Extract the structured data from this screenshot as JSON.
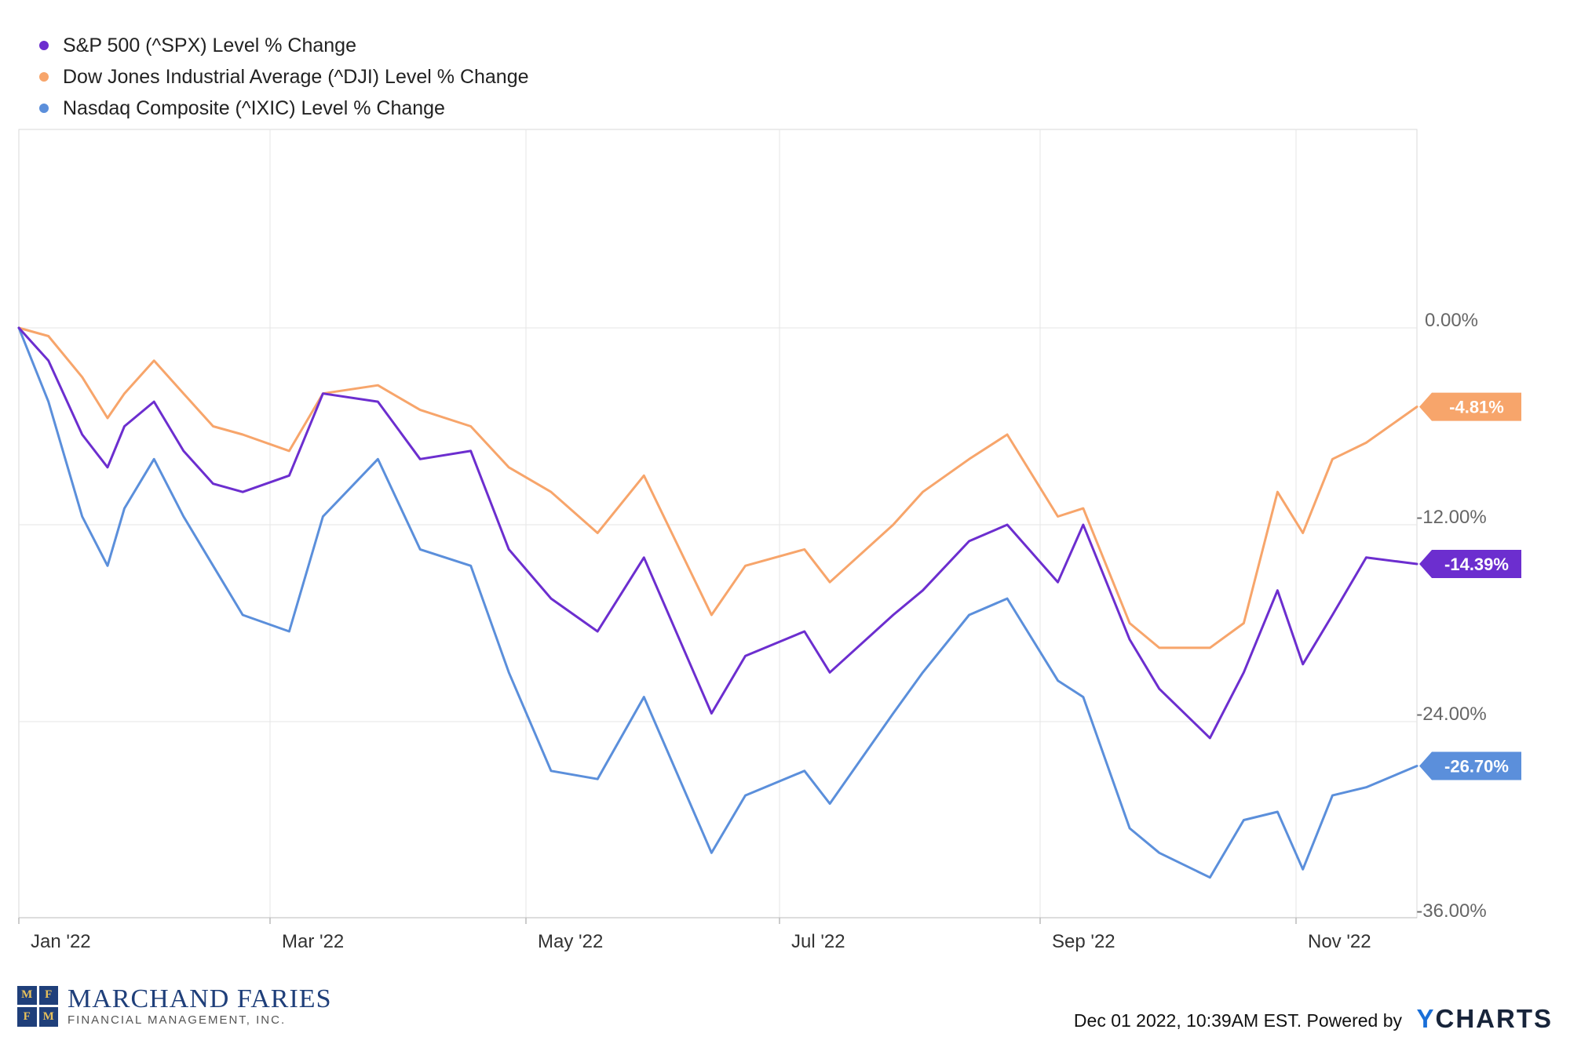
{
  "chart_data": {
    "type": "line",
    "x_ticks": [
      "Jan '22",
      "Mar '22",
      "May '22",
      "Jul '22",
      "Sep '22",
      "Nov '22"
    ],
    "y_ticks": [
      "0.00%",
      "-12.00%",
      "-24.00%",
      "-36.00%"
    ],
    "ylim": [
      -36,
      12
    ],
    "grid": true,
    "legend_position": "top-left",
    "series": [
      {
        "name": "S&P 500 (^SPX) Level % Change",
        "color": "#6c2ecf",
        "end_label": "-14.39%",
        "x": [
          "2022-01-03",
          "2022-01-10",
          "2022-01-18",
          "2022-01-24",
          "2022-01-28",
          "2022-02-04",
          "2022-02-11",
          "2022-02-18",
          "2022-02-25",
          "2022-03-08",
          "2022-03-16",
          "2022-03-29",
          "2022-04-08",
          "2022-04-20",
          "2022-04-29",
          "2022-05-09",
          "2022-05-20",
          "2022-05-31",
          "2022-06-16",
          "2022-06-24",
          "2022-07-08",
          "2022-07-14",
          "2022-07-29",
          "2022-08-05",
          "2022-08-16",
          "2022-08-25",
          "2022-09-06",
          "2022-09-12",
          "2022-09-23",
          "2022-09-30",
          "2022-10-12",
          "2022-10-20",
          "2022-10-28",
          "2022-11-03",
          "2022-11-10",
          "2022-11-18",
          "2022-11-30"
        ],
        "values": [
          0,
          -2,
          -6.5,
          -8.5,
          -6,
          -4.5,
          -7.5,
          -9.5,
          -10,
          -9,
          -4,
          -4.5,
          -8,
          -7.5,
          -13.5,
          -16.5,
          -18.5,
          -14,
          -23.5,
          -20,
          -18.5,
          -21,
          -17.5,
          -16,
          -13,
          -12,
          -15.5,
          -12,
          -19,
          -22,
          -25,
          -21,
          -16,
          -20.5,
          -17.5,
          -14,
          -14.39
        ]
      },
      {
        "name": "Dow Jones Industrial Average (^DJI) Level % Change",
        "color": "#f7a56b",
        "end_label": "-4.81%",
        "x": [
          "2022-01-03",
          "2022-01-10",
          "2022-01-18",
          "2022-01-24",
          "2022-01-28",
          "2022-02-04",
          "2022-02-11",
          "2022-02-18",
          "2022-02-25",
          "2022-03-08",
          "2022-03-16",
          "2022-03-29",
          "2022-04-08",
          "2022-04-20",
          "2022-04-29",
          "2022-05-09",
          "2022-05-20",
          "2022-05-31",
          "2022-06-16",
          "2022-06-24",
          "2022-07-08",
          "2022-07-14",
          "2022-07-29",
          "2022-08-05",
          "2022-08-16",
          "2022-08-25",
          "2022-09-06",
          "2022-09-12",
          "2022-09-23",
          "2022-09-30",
          "2022-10-12",
          "2022-10-20",
          "2022-10-28",
          "2022-11-03",
          "2022-11-10",
          "2022-11-18",
          "2022-11-30"
        ],
        "values": [
          0,
          -0.5,
          -3,
          -5.5,
          -4,
          -2,
          -4,
          -6,
          -6.5,
          -7.5,
          -4,
          -3.5,
          -5,
          -6,
          -8.5,
          -10,
          -12.5,
          -9,
          -17.5,
          -14.5,
          -13.5,
          -15.5,
          -12,
          -10,
          -8,
          -6.5,
          -11.5,
          -11,
          -18,
          -19.5,
          -19.5,
          -18,
          -10,
          -12.5,
          -8,
          -7,
          -4.81
        ]
      },
      {
        "name": "Nasdaq Composite (^IXIC) Level % Change",
        "color": "#5b8fdb",
        "end_label": "-26.70%",
        "x": [
          "2022-01-03",
          "2022-01-10",
          "2022-01-18",
          "2022-01-24",
          "2022-01-28",
          "2022-02-04",
          "2022-02-11",
          "2022-02-18",
          "2022-02-25",
          "2022-03-08",
          "2022-03-16",
          "2022-03-29",
          "2022-04-08",
          "2022-04-20",
          "2022-04-29",
          "2022-05-09",
          "2022-05-20",
          "2022-05-31",
          "2022-06-16",
          "2022-06-24",
          "2022-07-08",
          "2022-07-14",
          "2022-07-29",
          "2022-08-05",
          "2022-08-16",
          "2022-08-25",
          "2022-09-06",
          "2022-09-12",
          "2022-09-23",
          "2022-09-30",
          "2022-10-12",
          "2022-10-20",
          "2022-10-28",
          "2022-11-03",
          "2022-11-10",
          "2022-11-18",
          "2022-11-30"
        ],
        "values": [
          0,
          -4.5,
          -11.5,
          -14.5,
          -11,
          -8,
          -11.5,
          -14.5,
          -17.5,
          -18.5,
          -11.5,
          -8,
          -13.5,
          -14.5,
          -21,
          -27,
          -27.5,
          -22.5,
          -32,
          -28.5,
          -27,
          -29,
          -23.5,
          -21,
          -17.5,
          -16.5,
          -21.5,
          -22.5,
          -30.5,
          -32,
          -33.5,
          -30,
          -29.5,
          -33,
          -28.5,
          -28,
          -26.7
        ]
      }
    ]
  },
  "footer": {
    "timestamp": "Dec 01 2022, 10:39AM EST. Powered by",
    "brand_y": "Y",
    "brand_rest": "CHARTS"
  },
  "logo": {
    "name": "MARCHAND FARIES",
    "sub": "FINANCIAL MANAGEMENT, INC.",
    "mark": [
      "M",
      "F",
      "F",
      "M"
    ]
  }
}
